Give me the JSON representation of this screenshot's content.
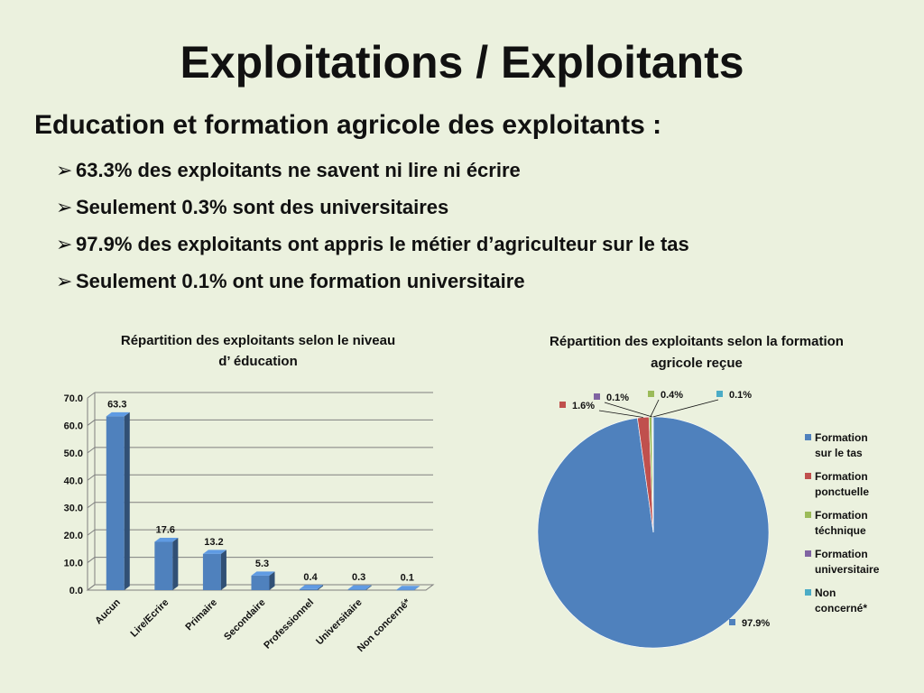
{
  "slide": {
    "title": "Exploitations / Exploitants",
    "subtitle": "Education et formation agricole des exploitants :",
    "bullet_glyph": "➢",
    "bullets": [
      "63.3% des exploitants ne savent ni lire ni écrire",
      "Seulement 0.3% sont des universitaires",
      "97.9% des exploitants ont appris le métier d’agriculteur sur le tas",
      "Seulement 0.1% ont une formation universitaire"
    ]
  },
  "chart_data": [
    {
      "type": "bar",
      "title_lines": [
        "Répartition des exploitants selon le niveau",
        "d’ éducation"
      ],
      "categories": [
        "Aucun",
        "Lire/Ecrire",
        "Primaire",
        "Secondaire",
        "Professionnel",
        "Universitaire",
        "Non concerné*"
      ],
      "values": [
        63.3,
        17.6,
        13.2,
        5.3,
        0.4,
        0.3,
        0.1
      ],
      "value_labels": [
        "63.3",
        "17.6",
        "13.2",
        "5.3",
        "0.4",
        "0.3",
        "0.1"
      ],
      "y_ticks": [
        "0.0",
        "10.0",
        "20.0",
        "30.0",
        "40.0",
        "50.0",
        "60.0",
        "70.0"
      ],
      "ylim": [
        0,
        70
      ],
      "grid": true,
      "bar_color": "#4f81bd"
    },
    {
      "type": "pie",
      "title_lines": [
        "Répartition des exploitants selon la formation",
        "agricole reçue"
      ],
      "slices": [
        {
          "legend": [
            "Formation",
            "sur le tas"
          ],
          "value": 97.9,
          "label": "97.9%",
          "color": "#4f81bd"
        },
        {
          "legend": [
            "Formation",
            "ponctuelle"
          ],
          "value": 1.6,
          "label": "1.6%",
          "color": "#c0504d"
        },
        {
          "legend": [
            "Formation",
            "téchnique"
          ],
          "value": 0.4,
          "label": "0.4%",
          "color": "#9bbb59"
        },
        {
          "legend": [
            "Formation",
            "universitaire"
          ],
          "value": 0.1,
          "label": "0.1%",
          "color": "#8064a2"
        },
        {
          "legend": [
            "Non",
            "concerné*"
          ],
          "value": 0.1,
          "label": "0.1%",
          "color": "#4bacc6"
        }
      ],
      "legend_position": "right"
    }
  ]
}
